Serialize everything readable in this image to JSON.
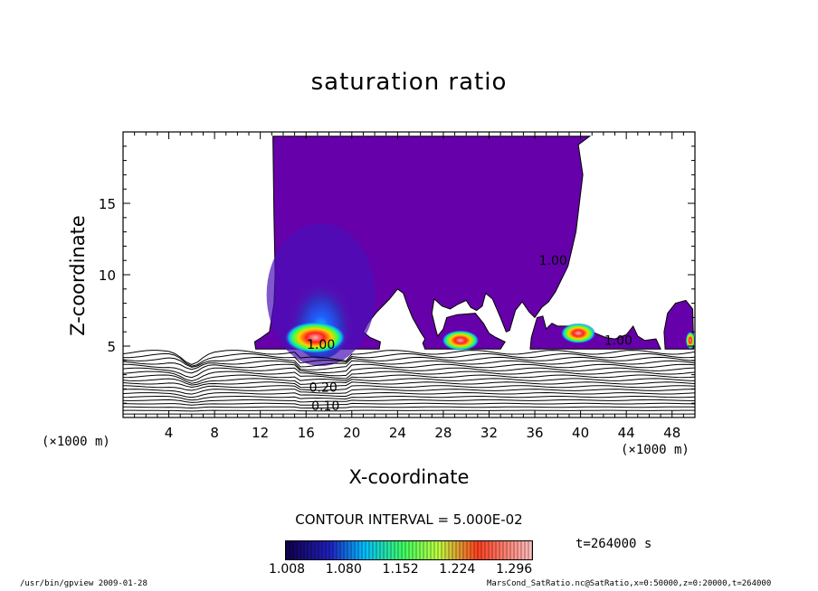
{
  "chart_data": {
    "type": "heatmap",
    "title": "saturation ratio",
    "xlabel": "X-coordinate",
    "ylabel": "Z-coordinate",
    "x_unit_label": "(×1000 m)",
    "x_ticks": [
      4,
      8,
      12,
      16,
      20,
      24,
      28,
      32,
      36,
      40,
      44,
      48
    ],
    "y_ticks": [
      5,
      10,
      15
    ],
    "xlim": [
      0,
      50
    ],
    "ylim": [
      0,
      20
    ],
    "contour_interval": "CONTOUR INTERVAL = 5.000E-02",
    "time_label": "t=264000 s",
    "colorbar_ticks": [
      "1.008",
      "1.080",
      "1.152",
      "1.224",
      "1.296"
    ],
    "colorbar_range": [
      1.008,
      1.32
    ],
    "contour_labels": [
      {
        "text": "0.10",
        "x": 17.7,
        "y": 0.5
      },
      {
        "text": "0.20",
        "x": 17.5,
        "y": 1.8
      },
      {
        "text": "1.00",
        "x": 17.3,
        "y": 4.8
      },
      {
        "text": "1.00",
        "x": 37.6,
        "y": 10.7
      },
      {
        "text": "1.00",
        "x": 43.3,
        "y": 5.1
      }
    ],
    "region_1_00": [
      [
        13.1,
        19.7
      ],
      [
        13.2,
        14.0
      ],
      [
        13.3,
        10.0
      ],
      [
        13.2,
        8.0
      ],
      [
        12.8,
        6.0
      ],
      [
        12.1,
        5.6
      ],
      [
        11.5,
        5.3
      ],
      [
        11.6,
        4.8
      ],
      [
        22.4,
        4.8
      ],
      [
        22.5,
        5.3
      ],
      [
        21.6,
        5.6
      ],
      [
        21.0,
        6.0
      ],
      [
        21.4,
        6.6
      ],
      [
        22.2,
        7.4
      ],
      [
        23.3,
        8.3
      ],
      [
        24.0,
        9.0
      ],
      [
        24.5,
        8.7
      ],
      [
        24.9,
        7.8
      ],
      [
        25.3,
        7.0
      ],
      [
        26.0,
        6.0
      ],
      [
        26.4,
        5.5
      ],
      [
        26.2,
        5.2
      ],
      [
        26.4,
        4.8
      ],
      [
        33.0,
        4.8
      ],
      [
        33.4,
        5.3
      ],
      [
        32.6,
        5.6
      ],
      [
        32.0,
        5.9
      ],
      [
        31.5,
        6.6
      ],
      [
        30.8,
        7.3
      ],
      [
        29.2,
        7.2
      ],
      [
        28.3,
        7.0
      ],
      [
        28.0,
        6.2
      ],
      [
        27.5,
        5.7
      ],
      [
        27.3,
        6.3
      ],
      [
        27.0,
        7.3
      ],
      [
        27.2,
        8.3
      ],
      [
        27.9,
        7.8
      ],
      [
        28.6,
        7.6
      ],
      [
        29.2,
        7.9
      ],
      [
        30.0,
        8.2
      ],
      [
        30.4,
        7.7
      ],
      [
        30.9,
        7.5
      ],
      [
        31.4,
        7.8
      ],
      [
        31.7,
        8.7
      ],
      [
        32.3,
        8.3
      ],
      [
        33.0,
        7.0
      ],
      [
        33.5,
        6.0
      ],
      [
        33.8,
        6.1
      ],
      [
        34.3,
        7.5
      ],
      [
        34.9,
        8.1
      ],
      [
        35.5,
        7.4
      ],
      [
        36.0,
        7.0
      ],
      [
        36.6,
        7.7
      ],
      [
        37.2,
        8.1
      ],
      [
        37.8,
        8.8
      ],
      [
        38.9,
        10.6
      ],
      [
        39.6,
        13.0
      ],
      [
        39.9,
        15.0
      ],
      [
        40.2,
        17.0
      ],
      [
        39.8,
        19.1
      ],
      [
        40.8,
        19.7
      ]
    ],
    "region_1_00_east": [
      [
        35.6,
        4.8
      ],
      [
        35.7,
        5.6
      ],
      [
        36.2,
        7.0
      ],
      [
        36.7,
        7.1
      ],
      [
        37.0,
        6.2
      ],
      [
        37.5,
        6.6
      ],
      [
        38.0,
        6.4
      ],
      [
        39.0,
        6.4
      ],
      [
        40.0,
        6.2
      ],
      [
        41.0,
        6.0
      ],
      [
        42.2,
        5.6
      ],
      [
        43.0,
        5.5
      ],
      [
        44.0,
        5.8
      ],
      [
        44.6,
        6.4
      ],
      [
        45.0,
        5.7
      ],
      [
        45.6,
        5.4
      ],
      [
        46.6,
        5.5
      ],
      [
        47.0,
        4.8
      ]
    ],
    "region_1_00_edge": [
      [
        47.4,
        4.8
      ],
      [
        47.3,
        6.0
      ],
      [
        47.6,
        7.3
      ],
      [
        48.3,
        8.0
      ],
      [
        49.2,
        8.2
      ],
      [
        49.8,
        7.6
      ],
      [
        49.9,
        4.8
      ]
    ],
    "hot_spots": [
      {
        "x": 16.8,
        "y": 5.6,
        "rx": 5.2,
        "ry": 0.55,
        "level": 1.22
      },
      {
        "x": 29.5,
        "y": 5.4,
        "rx": 3.2,
        "ry": 0.35,
        "level": 1.18
      },
      {
        "x": 39.8,
        "y": 5.9,
        "rx": 3.0,
        "ry": 0.35,
        "level": 1.2
      },
      {
        "x": 49.6,
        "y": 5.4,
        "rx": 0.8,
        "ry": 0.3,
        "level": 1.15
      }
    ],
    "contour_levels": [
      0.1,
      0.15,
      0.2,
      0.25,
      0.3,
      0.35,
      0.4,
      0.45,
      0.5,
      0.55,
      0.6,
      0.65,
      0.7,
      0.75,
      0.8,
      0.85,
      0.9,
      0.95,
      1.0
    ],
    "colors": {
      "low": "#6600aa",
      "mid1": "#4040c8",
      "mid2": "#00c0ff",
      "mid3": "#40ff40",
      "high": "#ff2020",
      "top": "#ffb0b0"
    }
  },
  "footer": {
    "left": "/usr/bin/gpview   2009-01-28",
    "right": "MarsCond_SatRatio.nc@SatRatio,x=0:50000,z=0:20000,t=264000"
  }
}
